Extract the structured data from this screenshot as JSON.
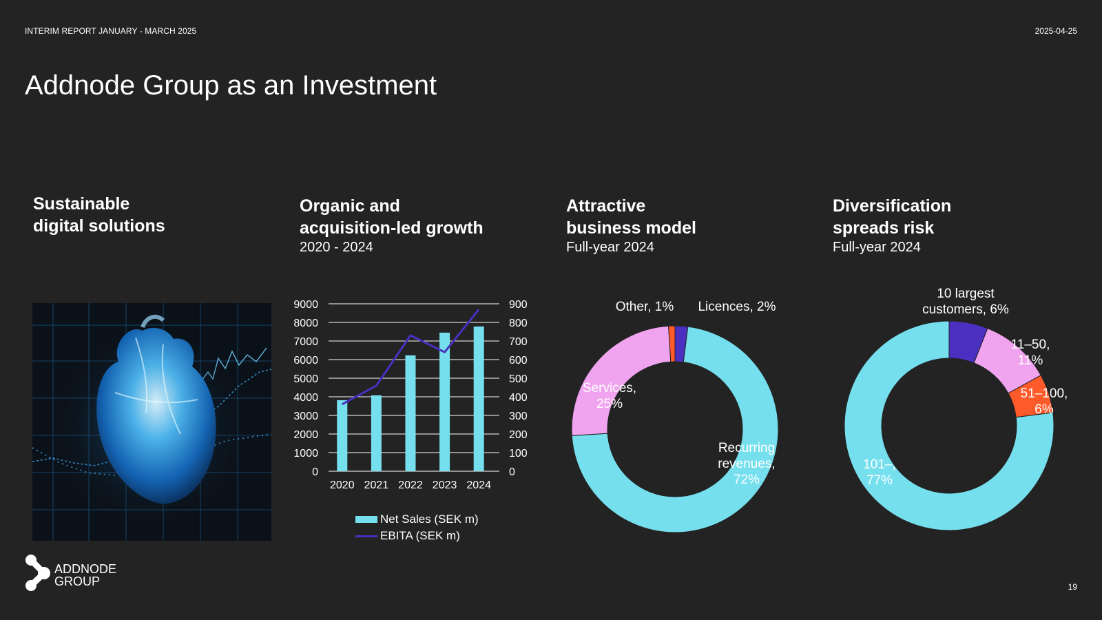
{
  "header": {
    "report_label": "INTERIM REPORT JANUARY - MARCH 2025",
    "date": "2025-04-25"
  },
  "title": "Addnode Group as an Investment",
  "columns": [
    {
      "heading_line1": "Sustainable",
      "heading_line2": "digital solutions",
      "subtitle": ""
    },
    {
      "heading_line1": "Organic and",
      "heading_line2": "acquisition-led growth",
      "subtitle": "2020 - 2024"
    },
    {
      "heading_line1": "Attractive",
      "heading_line2": "business model",
      "subtitle": "Full-year 2024"
    },
    {
      "heading_line1": "Diversification",
      "heading_line2": "spreads risk",
      "subtitle": "Full-year 2024"
    }
  ],
  "image": {
    "icon": "digital-heart-illustration"
  },
  "colors": {
    "background": "#232323",
    "cyan": "#76DFEE",
    "purple": "#4A2FC0",
    "pink": "#F0A3EE",
    "orange": "#FF5A2A"
  },
  "chart_data": [
    {
      "type": "bar",
      "title": "Organic and acquisition-led growth",
      "categories": [
        "2020",
        "2021",
        "2022",
        "2023",
        "2024"
      ],
      "series": [
        {
          "name": "Net Sales (SEK m)",
          "kind": "bar",
          "axis": "left",
          "values": [
            3820,
            4080,
            6230,
            7450,
            7780
          ]
        },
        {
          "name": "EBITA (SEK m)",
          "kind": "line",
          "axis": "right",
          "values": [
            360,
            460,
            730,
            640,
            870
          ]
        }
      ],
      "y_left": {
        "ticks": [
          "0",
          "1000",
          "2000",
          "3000",
          "4000",
          "5000",
          "6000",
          "7000",
          "8000",
          "9000"
        ],
        "ylim": [
          0,
          9000
        ]
      },
      "y_right": {
        "ticks": [
          "0",
          "100",
          "200",
          "300",
          "400",
          "500",
          "600",
          "700",
          "800",
          "900"
        ],
        "ylim": [
          0,
          900
        ]
      }
    },
    {
      "type": "pie",
      "title": "Attractive business model",
      "slices": [
        {
          "name": "Licences",
          "value": 2,
          "color": "#4A2FC0",
          "label_lines": [
            "Licences, 2%"
          ]
        },
        {
          "name": "Recurring revenues",
          "value": 72,
          "color": "#76DFEE",
          "label_lines": [
            "Recurring",
            "revenues,",
            "72%"
          ]
        },
        {
          "name": "Services",
          "value": 25,
          "color": "#F0A3EE",
          "label_lines": [
            "Services,",
            "25%"
          ]
        },
        {
          "name": "Other",
          "value": 1,
          "color": "#FF5A2A",
          "label_lines": [
            "Other, 1%"
          ]
        }
      ]
    },
    {
      "type": "pie",
      "title": "Diversification spreads risk",
      "slices": [
        {
          "name": "10 largest customers",
          "value": 6,
          "color": "#4A2FC0",
          "label_lines": [
            "10 largest",
            "customers, 6%"
          ]
        },
        {
          "name": "11–50",
          "value": 11,
          "color": "#F0A3EE",
          "label_lines": [
            "11–50,",
            "11%"
          ]
        },
        {
          "name": "51–100",
          "value": 6,
          "color": "#FF5A2A",
          "label_lines": [
            "51–100,",
            "6%"
          ]
        },
        {
          "name": "101–",
          "value": 77,
          "color": "#76DFEE",
          "label_lines": [
            "101–,",
            "77%"
          ]
        }
      ]
    }
  ],
  "legend": {
    "bar_label": "Net Sales (SEK m)",
    "line_label": "EBITA (SEK m)"
  },
  "logo": {
    "line1": "ADDNODE",
    "line2": "GROUP"
  },
  "page_number": "19"
}
